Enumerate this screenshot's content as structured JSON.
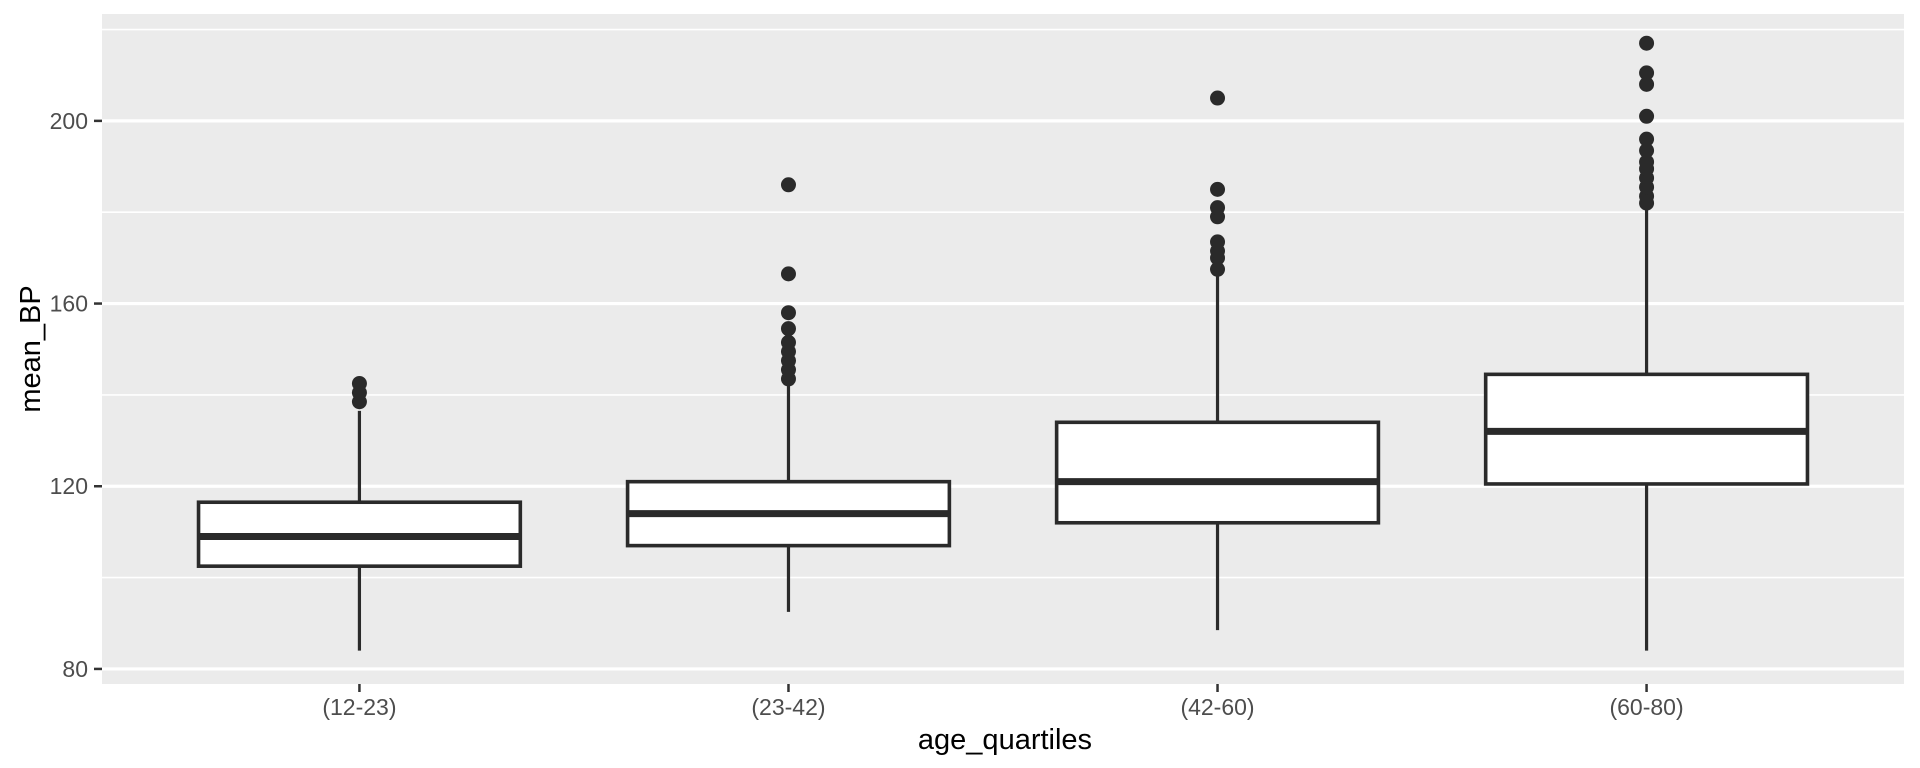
{
  "chart_data": {
    "type": "boxplot",
    "title": "",
    "xlabel": "age_quartiles",
    "ylabel": "mean_BP",
    "categories": [
      "(12-23)",
      "(23-42)",
      "(42-60)",
      "(60-80)"
    ],
    "y_ticks": [
      80,
      120,
      160,
      200
    ],
    "y_minor_gridlines": [
      100,
      140,
      180,
      220
    ],
    "ylim": [
      76.7,
      223.4
    ],
    "grid": "on",
    "legend": "none",
    "panel_background": "#EBEBEB",
    "gridline_color": "#FFFFFF",
    "box_fill": "#FFFFFF",
    "box_stroke": "#2A2A2A",
    "outlier_color": "#2A2A2A",
    "tick_label_color": "#4D4D4D",
    "axis_title_color": "#000000",
    "series": [
      {
        "category": "(12-23)",
        "whisker_low": 84,
        "q1": 102.5,
        "median": 109,
        "q3": 116.5,
        "whisker_high": 136.5,
        "outliers": [
          138.5,
          140.5,
          142.5
        ]
      },
      {
        "category": "(23-42)",
        "whisker_low": 92.5,
        "q1": 107,
        "median": 114,
        "q3": 121,
        "whisker_high": 142.5,
        "outliers": [
          143.5,
          145.5,
          147.5,
          149.5,
          151.5,
          154.5,
          158,
          166.5,
          186
        ]
      },
      {
        "category": "(42-60)",
        "whisker_low": 88.5,
        "q1": 112,
        "median": 121,
        "q3": 134,
        "whisker_high": 166,
        "outliers": [
          167.5,
          170,
          171.5,
          173.5,
          179,
          181,
          185,
          205
        ]
      },
      {
        "category": "(60-80)",
        "whisker_low": 84,
        "q1": 120.5,
        "median": 132,
        "q3": 144.5,
        "whisker_high": 181,
        "outliers": [
          182,
          183.5,
          185.5,
          187.5,
          189.5,
          191,
          193.5,
          196,
          201,
          208,
          210.5,
          217
        ]
      }
    ]
  }
}
